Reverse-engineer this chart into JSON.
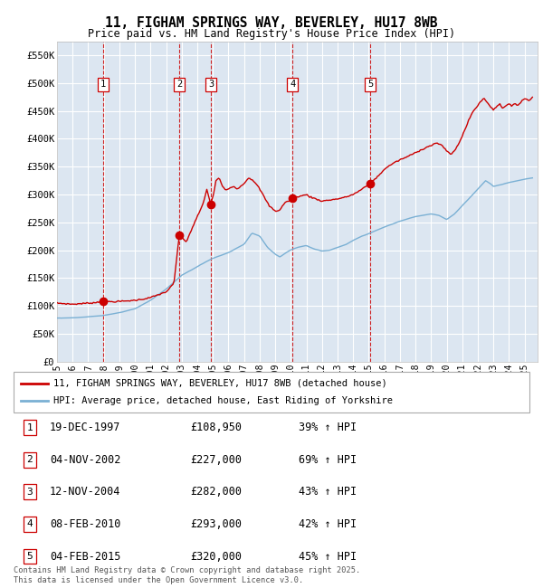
{
  "title": "11, FIGHAM SPRINGS WAY, BEVERLEY, HU17 8WB",
  "subtitle": "Price paid vs. HM Land Registry's House Price Index (HPI)",
  "background_color": "#ffffff",
  "plot_bg_color": "#dce6f1",
  "hpi_line_color": "#7ab0d4",
  "price_line_color": "#cc0000",
  "marker_color": "#cc0000",
  "vline_color": "#cc0000",
  "grid_color": "#ffffff",
  "ylim": [
    0,
    575000
  ],
  "yticks": [
    0,
    50000,
    100000,
    150000,
    200000,
    250000,
    300000,
    350000,
    400000,
    450000,
    500000,
    550000
  ],
  "ytick_labels": [
    "£0",
    "£50K",
    "£100K",
    "£150K",
    "£200K",
    "£250K",
    "£300K",
    "£350K",
    "£400K",
    "£450K",
    "£500K",
    "£550K"
  ],
  "xlim_start": 1995.0,
  "xlim_end": 2025.83,
  "sale_dates": [
    1997.96,
    2002.84,
    2004.87,
    2010.1,
    2015.09
  ],
  "sale_prices": [
    108950,
    227000,
    282000,
    293000,
    320000
  ],
  "sale_labels": [
    "1",
    "2",
    "3",
    "4",
    "5"
  ],
  "sale_table": [
    {
      "label": "1",
      "date": "19-DEC-1997",
      "price": "£108,950",
      "hpi": "39% ↑ HPI"
    },
    {
      "label": "2",
      "date": "04-NOV-2002",
      "price": "£227,000",
      "hpi": "69% ↑ HPI"
    },
    {
      "label": "3",
      "date": "12-NOV-2004",
      "price": "£282,000",
      "hpi": "43% ↑ HPI"
    },
    {
      "label": "4",
      "date": "08-FEB-2010",
      "price": "£293,000",
      "hpi": "42% ↑ HPI"
    },
    {
      "label": "5",
      "date": "04-FEB-2015",
      "price": "£320,000",
      "hpi": "45% ↑ HPI"
    }
  ],
  "legend_line1": "11, FIGHAM SPRINGS WAY, BEVERLEY, HU17 8WB (detached house)",
  "legend_line2": "HPI: Average price, detached house, East Riding of Yorkshire",
  "footnote": "Contains HM Land Registry data © Crown copyright and database right 2025.\nThis data is licensed under the Open Government Licence v3.0.",
  "xtick_years": [
    1995,
    1996,
    1997,
    1998,
    1999,
    2000,
    2001,
    2002,
    2003,
    2004,
    2005,
    2006,
    2007,
    2008,
    2009,
    2010,
    2011,
    2012,
    2013,
    2014,
    2015,
    2016,
    2017,
    2018,
    2019,
    2020,
    2021,
    2022,
    2023,
    2024,
    2025
  ]
}
